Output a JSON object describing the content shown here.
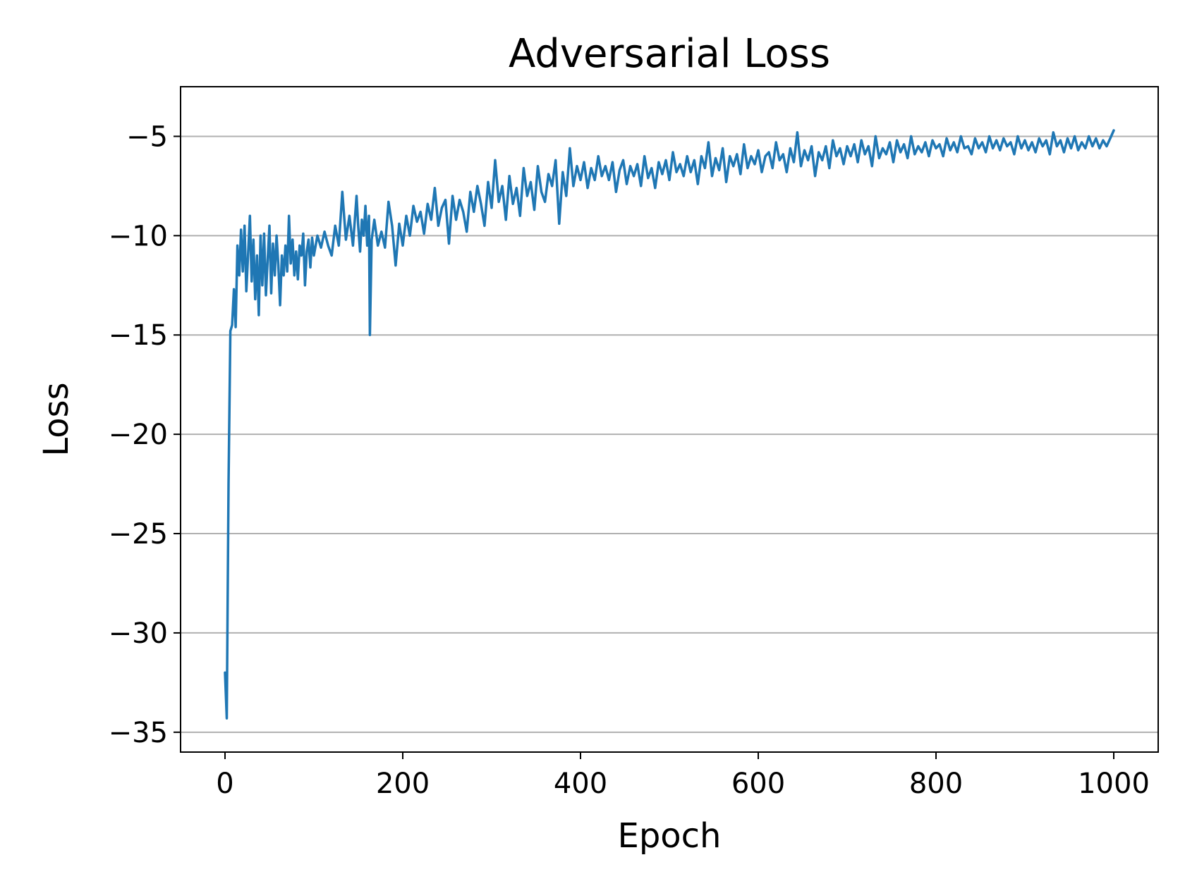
{
  "chart_data": {
    "type": "line",
    "title": "Adversarial Loss",
    "xlabel": "Epoch",
    "ylabel": "Loss",
    "xlim": [
      -50,
      1050
    ],
    "ylim": [
      -36,
      -2.5
    ],
    "xticks": [
      {
        "value": 0,
        "label": "0"
      },
      {
        "value": 200,
        "label": "200"
      },
      {
        "value": 400,
        "label": "400"
      },
      {
        "value": 600,
        "label": "600"
      },
      {
        "value": 800,
        "label": "800"
      },
      {
        "value": 1000,
        "label": "1000"
      }
    ],
    "yticks": [
      {
        "value": -5,
        "label": "−5"
      },
      {
        "value": -10,
        "label": "−10"
      },
      {
        "value": -15,
        "label": "−15"
      },
      {
        "value": -20,
        "label": "−20"
      },
      {
        "value": -25,
        "label": "−25"
      },
      {
        "value": -30,
        "label": "−30"
      },
      {
        "value": -35,
        "label": "−35"
      }
    ],
    "grid": "y",
    "legend": "none",
    "series": [
      {
        "color": "#1f77b4",
        "points": [
          [
            0,
            -32.0
          ],
          [
            2,
            -34.3
          ],
          [
            4,
            -22.5
          ],
          [
            6,
            -14.8
          ],
          [
            8,
            -14.5
          ],
          [
            10,
            -12.7
          ],
          [
            12,
            -14.6
          ],
          [
            14,
            -10.5
          ],
          [
            16,
            -12.0
          ],
          [
            18,
            -9.7
          ],
          [
            20,
            -11.8
          ],
          [
            22,
            -9.5
          ],
          [
            24,
            -12.8
          ],
          [
            26,
            -10.9
          ],
          [
            28,
            -9.0
          ],
          [
            30,
            -12.3
          ],
          [
            32,
            -10.2
          ],
          [
            34,
            -13.2
          ],
          [
            36,
            -11.0
          ],
          [
            38,
            -14.0
          ],
          [
            40,
            -10.0
          ],
          [
            42,
            -12.5
          ],
          [
            44,
            -9.9
          ],
          [
            46,
            -13.0
          ],
          [
            48,
            -11.2
          ],
          [
            50,
            -9.5
          ],
          [
            52,
            -12.9
          ],
          [
            54,
            -10.4
          ],
          [
            56,
            -12.0
          ],
          [
            58,
            -10.0
          ],
          [
            60,
            -11.5
          ],
          [
            62,
            -13.5
          ],
          [
            64,
            -11.0
          ],
          [
            66,
            -12.0
          ],
          [
            68,
            -10.5
          ],
          [
            70,
            -11.8
          ],
          [
            72,
            -9.0
          ],
          [
            74,
            -11.4
          ],
          [
            76,
            -10.2
          ],
          [
            78,
            -12.0
          ],
          [
            80,
            -10.8
          ],
          [
            82,
            -12.2
          ],
          [
            84,
            -10.5
          ],
          [
            86,
            -11.0
          ],
          [
            88,
            -9.9
          ],
          [
            90,
            -12.5
          ],
          [
            92,
            -10.8
          ],
          [
            94,
            -10.2
          ],
          [
            96,
            -11.6
          ],
          [
            98,
            -10.1
          ],
          [
            100,
            -11.0
          ],
          [
            104,
            -10.0
          ],
          [
            108,
            -10.6
          ],
          [
            112,
            -9.8
          ],
          [
            116,
            -10.5
          ],
          [
            120,
            -11.0
          ],
          [
            124,
            -9.5
          ],
          [
            128,
            -10.5
          ],
          [
            132,
            -7.8
          ],
          [
            136,
            -10.2
          ],
          [
            140,
            -9.0
          ],
          [
            144,
            -10.5
          ],
          [
            148,
            -8.0
          ],
          [
            150,
            -9.6
          ],
          [
            152,
            -10.8
          ],
          [
            154,
            -9.2
          ],
          [
            156,
            -10.0
          ],
          [
            158,
            -8.5
          ],
          [
            160,
            -10.5
          ],
          [
            162,
            -9.0
          ],
          [
            163,
            -15.0
          ],
          [
            165,
            -10.2
          ],
          [
            168,
            -9.2
          ],
          [
            172,
            -10.5
          ],
          [
            176,
            -9.8
          ],
          [
            180,
            -10.6
          ],
          [
            184,
            -8.3
          ],
          [
            188,
            -9.5
          ],
          [
            192,
            -11.5
          ],
          [
            196,
            -9.4
          ],
          [
            200,
            -10.5
          ],
          [
            204,
            -9.0
          ],
          [
            208,
            -10.0
          ],
          [
            212,
            -8.5
          ],
          [
            216,
            -9.3
          ],
          [
            220,
            -8.8
          ],
          [
            224,
            -9.9
          ],
          [
            228,
            -8.4
          ],
          [
            232,
            -9.2
          ],
          [
            236,
            -7.6
          ],
          [
            240,
            -9.5
          ],
          [
            244,
            -8.6
          ],
          [
            248,
            -8.2
          ],
          [
            252,
            -10.4
          ],
          [
            256,
            -8.0
          ],
          [
            260,
            -9.2
          ],
          [
            264,
            -8.2
          ],
          [
            268,
            -8.8
          ],
          [
            272,
            -9.8
          ],
          [
            276,
            -7.8
          ],
          [
            280,
            -8.8
          ],
          [
            284,
            -7.5
          ],
          [
            288,
            -8.4
          ],
          [
            292,
            -9.5
          ],
          [
            296,
            -7.3
          ],
          [
            300,
            -8.6
          ],
          [
            304,
            -6.2
          ],
          [
            308,
            -8.3
          ],
          [
            312,
            -7.5
          ],
          [
            316,
            -9.2
          ],
          [
            320,
            -7.0
          ],
          [
            324,
            -8.4
          ],
          [
            328,
            -7.6
          ],
          [
            332,
            -9.0
          ],
          [
            336,
            -6.6
          ],
          [
            340,
            -8.0
          ],
          [
            344,
            -7.3
          ],
          [
            348,
            -8.7
          ],
          [
            352,
            -6.5
          ],
          [
            356,
            -7.8
          ],
          [
            360,
            -8.3
          ],
          [
            364,
            -6.9
          ],
          [
            368,
            -7.5
          ],
          [
            372,
            -6.2
          ],
          [
            376,
            -9.4
          ],
          [
            380,
            -6.8
          ],
          [
            384,
            -8.0
          ],
          [
            388,
            -5.6
          ],
          [
            392,
            -7.5
          ],
          [
            396,
            -6.5
          ],
          [
            400,
            -7.2
          ],
          [
            404,
            -6.3
          ],
          [
            408,
            -7.6
          ],
          [
            412,
            -6.6
          ],
          [
            416,
            -7.2
          ],
          [
            420,
            -6.0
          ],
          [
            424,
            -7.0
          ],
          [
            428,
            -6.5
          ],
          [
            432,
            -7.2
          ],
          [
            436,
            -6.3
          ],
          [
            440,
            -7.8
          ],
          [
            444,
            -6.7
          ],
          [
            448,
            -6.2
          ],
          [
            452,
            -7.4
          ],
          [
            456,
            -6.5
          ],
          [
            460,
            -7.0
          ],
          [
            464,
            -6.4
          ],
          [
            468,
            -7.5
          ],
          [
            472,
            -6.0
          ],
          [
            476,
            -7.1
          ],
          [
            480,
            -6.6
          ],
          [
            484,
            -7.6
          ],
          [
            488,
            -6.3
          ],
          [
            492,
            -6.9
          ],
          [
            496,
            -6.2
          ],
          [
            500,
            -7.2
          ],
          [
            504,
            -5.8
          ],
          [
            508,
            -6.8
          ],
          [
            512,
            -6.4
          ],
          [
            516,
            -7.0
          ],
          [
            520,
            -6.0
          ],
          [
            524,
            -6.8
          ],
          [
            528,
            -6.2
          ],
          [
            532,
            -7.4
          ],
          [
            536,
            -6.0
          ],
          [
            540,
            -6.6
          ],
          [
            544,
            -5.3
          ],
          [
            548,
            -7.0
          ],
          [
            552,
            -6.1
          ],
          [
            556,
            -6.7
          ],
          [
            560,
            -5.6
          ],
          [
            564,
            -7.3
          ],
          [
            568,
            -6.0
          ],
          [
            572,
            -6.5
          ],
          [
            576,
            -5.9
          ],
          [
            580,
            -6.9
          ],
          [
            584,
            -5.4
          ],
          [
            588,
            -6.6
          ],
          [
            592,
            -6.0
          ],
          [
            596,
            -6.4
          ],
          [
            600,
            -5.7
          ],
          [
            604,
            -6.8
          ],
          [
            608,
            -6.0
          ],
          [
            612,
            -5.8
          ],
          [
            616,
            -6.6
          ],
          [
            620,
            -5.3
          ],
          [
            624,
            -6.2
          ],
          [
            628,
            -5.9
          ],
          [
            632,
            -6.8
          ],
          [
            636,
            -5.6
          ],
          [
            640,
            -6.3
          ],
          [
            644,
            -4.8
          ],
          [
            648,
            -6.5
          ],
          [
            652,
            -5.7
          ],
          [
            656,
            -6.2
          ],
          [
            660,
            -5.5
          ],
          [
            664,
            -7.0
          ],
          [
            668,
            -5.8
          ],
          [
            672,
            -6.2
          ],
          [
            676,
            -5.5
          ],
          [
            680,
            -6.6
          ],
          [
            684,
            -5.2
          ],
          [
            688,
            -6.0
          ],
          [
            692,
            -5.6
          ],
          [
            696,
            -6.4
          ],
          [
            700,
            -5.5
          ],
          [
            704,
            -6.0
          ],
          [
            708,
            -5.4
          ],
          [
            712,
            -6.3
          ],
          [
            716,
            -5.2
          ],
          [
            720,
            -5.9
          ],
          [
            724,
            -5.5
          ],
          [
            728,
            -6.5
          ],
          [
            732,
            -5.0
          ],
          [
            736,
            -6.1
          ],
          [
            740,
            -5.6
          ],
          [
            744,
            -5.9
          ],
          [
            748,
            -5.3
          ],
          [
            752,
            -6.3
          ],
          [
            756,
            -5.2
          ],
          [
            760,
            -5.8
          ],
          [
            764,
            -5.4
          ],
          [
            768,
            -6.1
          ],
          [
            772,
            -5.0
          ],
          [
            776,
            -5.9
          ],
          [
            780,
            -5.5
          ],
          [
            784,
            -5.8
          ],
          [
            788,
            -5.3
          ],
          [
            792,
            -6.0
          ],
          [
            796,
            -5.2
          ],
          [
            800,
            -5.6
          ],
          [
            804,
            -5.4
          ],
          [
            808,
            -6.0
          ],
          [
            812,
            -5.1
          ],
          [
            816,
            -5.7
          ],
          [
            820,
            -5.3
          ],
          [
            824,
            -5.8
          ],
          [
            828,
            -5.0
          ],
          [
            832,
            -5.6
          ],
          [
            836,
            -5.5
          ],
          [
            840,
            -5.9
          ],
          [
            844,
            -5.1
          ],
          [
            848,
            -5.6
          ],
          [
            852,
            -5.3
          ],
          [
            856,
            -5.8
          ],
          [
            860,
            -5.0
          ],
          [
            864,
            -5.6
          ],
          [
            868,
            -5.2
          ],
          [
            872,
            -5.7
          ],
          [
            876,
            -5.1
          ],
          [
            880,
            -5.5
          ],
          [
            884,
            -5.3
          ],
          [
            888,
            -5.9
          ],
          [
            892,
            -5.0
          ],
          [
            896,
            -5.6
          ],
          [
            900,
            -5.2
          ],
          [
            904,
            -5.7
          ],
          [
            908,
            -5.3
          ],
          [
            912,
            -5.8
          ],
          [
            916,
            -5.1
          ],
          [
            920,
            -5.5
          ],
          [
            924,
            -5.2
          ],
          [
            928,
            -5.9
          ],
          [
            932,
            -4.8
          ],
          [
            936,
            -5.5
          ],
          [
            940,
            -5.2
          ],
          [
            944,
            -5.8
          ],
          [
            948,
            -5.1
          ],
          [
            952,
            -5.6
          ],
          [
            956,
            -5.0
          ],
          [
            960,
            -5.7
          ],
          [
            964,
            -5.3
          ],
          [
            968,
            -5.6
          ],
          [
            972,
            -5.0
          ],
          [
            976,
            -5.5
          ],
          [
            980,
            -5.1
          ],
          [
            984,
            -5.6
          ],
          [
            988,
            -5.2
          ],
          [
            992,
            -5.5
          ],
          [
            996,
            -5.1
          ],
          [
            1000,
            -4.7
          ]
        ]
      }
    ]
  }
}
